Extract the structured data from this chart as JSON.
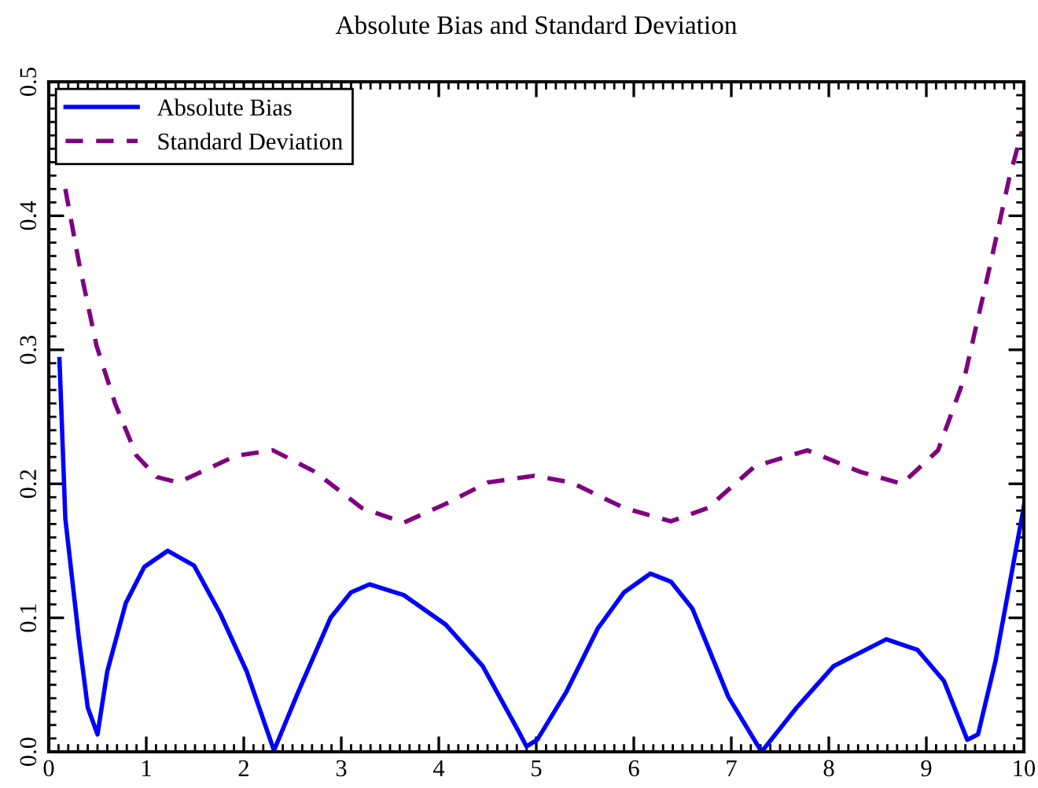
{
  "chart_data": {
    "type": "line",
    "title": "Absolute Bias and Standard Deviation",
    "xlim": [
      0,
      10
    ],
    "xticks": [
      0,
      1,
      2,
      3,
      4,
      5,
      6,
      7,
      8,
      9,
      10
    ],
    "ylim": [
      0,
      0.5
    ],
    "yticks": [
      {
        "value": 0,
        "label": "0.0"
      },
      0.1,
      0.2,
      0.3,
      0.4,
      0.5
    ],
    "grid": false,
    "legend": "top left",
    "series": [
      {
        "name": "Absolute Bias",
        "color": "#0000ff",
        "line_style": "solid",
        "x": [
          0.11,
          0.17,
          0.31,
          0.4,
          0.5,
          0.6,
          0.79,
          0.98,
          1.22,
          1.49,
          1.76,
          2.03,
          2.31,
          2.56,
          2.89,
          3.1,
          3.29,
          3.64,
          4.07,
          4.45,
          4.82,
          4.9,
          5.01,
          5.31,
          5.63,
          5.9,
          6.17,
          6.38,
          6.6,
          6.97,
          7.31,
          7.67,
          8.05,
          8.59,
          8.91,
          9.18,
          9.42,
          9.53,
          9.71,
          10.0
        ],
        "values": [
          0.293,
          0.174,
          0.084,
          0.033,
          0.013,
          0.06,
          0.111,
          0.138,
          0.15,
          0.139,
          0.103,
          0.06,
          0.001,
          0.045,
          0.1,
          0.119,
          0.125,
          0.117,
          0.095,
          0.064,
          0.015,
          0.004,
          0.009,
          0.045,
          0.092,
          0.119,
          0.133,
          0.127,
          0.107,
          0.041,
          0.0,
          0.033,
          0.064,
          0.084,
          0.076,
          0.053,
          0.009,
          0.013,
          0.068,
          0.183
        ]
      },
      {
        "name": "Standard Deviation",
        "color": "#800080",
        "line_style": "dashed",
        "x": [
          0.17,
          0.31,
          0.49,
          0.68,
          0.9,
          1.11,
          1.33,
          1.92,
          2.3,
          2.73,
          3.21,
          3.64,
          4.07,
          4.5,
          4.98,
          5.36,
          5.9,
          6.38,
          6.76,
          7.24,
          7.78,
          8.32,
          8.75,
          9.12,
          9.39,
          9.66,
          9.85,
          9.98
        ],
        "values": [
          0.42,
          0.365,
          0.303,
          0.26,
          0.221,
          0.205,
          0.201,
          0.221,
          0.225,
          0.209,
          0.182,
          0.171,
          0.185,
          0.201,
          0.206,
          0.201,
          0.182,
          0.172,
          0.182,
          0.213,
          0.225,
          0.209,
          0.2,
          0.225,
          0.279,
          0.365,
          0.428,
          0.463
        ]
      }
    ]
  }
}
